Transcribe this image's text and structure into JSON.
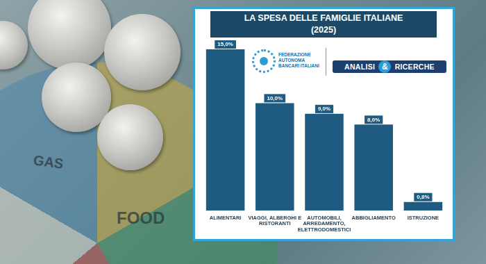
{
  "chart_data": {
    "type": "bar",
    "title": "LA SPESA DELLE FAMIGLIE ITALIANE",
    "subtitle": "(2025)",
    "categories": [
      "ALIMENTARI",
      "VIAGGI, ALBERGHI E RISTORANTI",
      "AUTOMOBILI, ARREDAMENTO, ELETTRODOMESTICI",
      "ABBIGLIAMENTO",
      "ISTRUZIONE"
    ],
    "values": [
      15.0,
      10.0,
      9.0,
      8.0,
      0.8
    ],
    "value_labels": [
      "15,0%",
      "10,0%",
      "9,0%",
      "8,0%",
      "0,8%"
    ],
    "color": "#1f5b80",
    "ylim": [
      0,
      15
    ],
    "yticks": [
      0,
      5,
      10,
      15
    ],
    "grid": false,
    "data_labels": true,
    "tick_labels": "x"
  },
  "logos": {
    "left": "FEDERAZIONE AUTONOMA BANCARI ITALIANI",
    "right": "ANALISI & RICERCHE"
  },
  "background": {
    "labels": [
      "GAS",
      "FOOD"
    ]
  }
}
